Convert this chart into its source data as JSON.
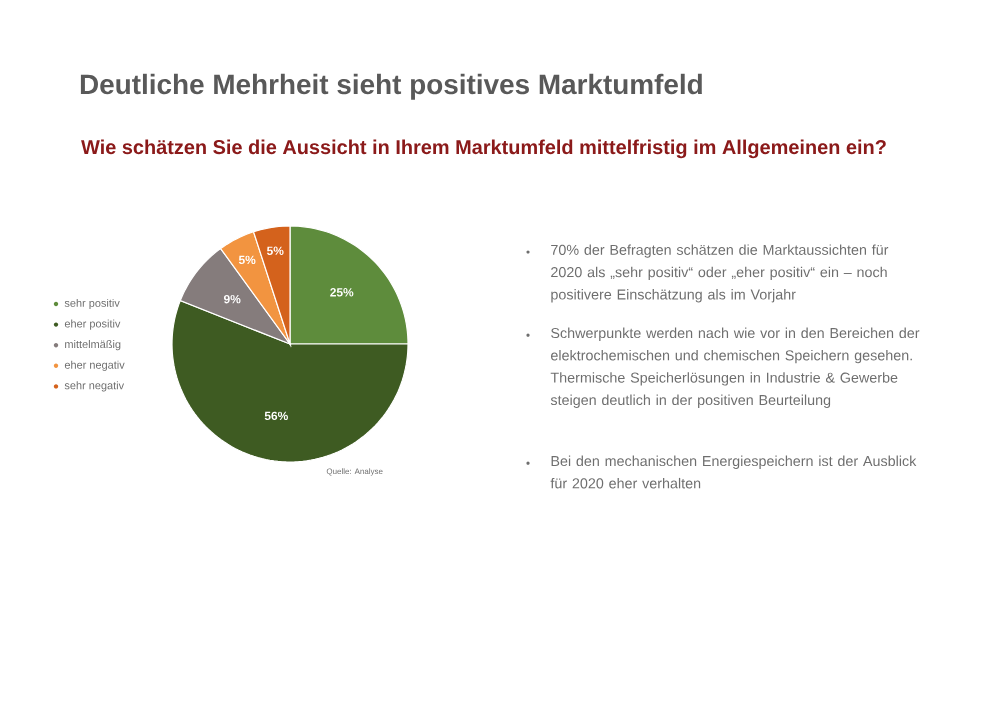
{
  "chart_data": {
    "type": "pie",
    "title": "Deutliche Mehrheit sieht positives Marktumfeld",
    "subtitle": "Wie schätzen Sie die Aussicht in Ihrem Marktumfeld mittelfristig im Allgemeinen ein?",
    "categories": [
      "sehr positiv",
      "eher positiv",
      "mittelmäßig",
      "eher negativ",
      "sehr negativ"
    ],
    "values": [
      25,
      56,
      9,
      5,
      5
    ],
    "value_labels": [
      "25%",
      "56%",
      "9%",
      "5%",
      "5%"
    ],
    "colors": [
      "#5e8c3c",
      "#3e5b22",
      "#857c7c",
      "#f29440",
      "#d4621c"
    ],
    "legend": "left",
    "annotations": [
      "70% der Befragten schätzen die Marktaussichten für 2020 als „sehr positiv“ oder „eher positiv“ ein – noch positivere Einschätzung als im Vorjahr",
      "Schwerpunkte werden nach wie vor in den Bereichen der elektrochemischen und chemischen Speichern gesehen. Thermische Speicherlösungen in Industrie & Gewerbe steigen deutlich in der positiven Beurteilung",
      "Bei den mechanischen Energiespeichern ist der Ausblick für 2020 eher verhalten",
      "Quelle: Analyse"
    ]
  }
}
